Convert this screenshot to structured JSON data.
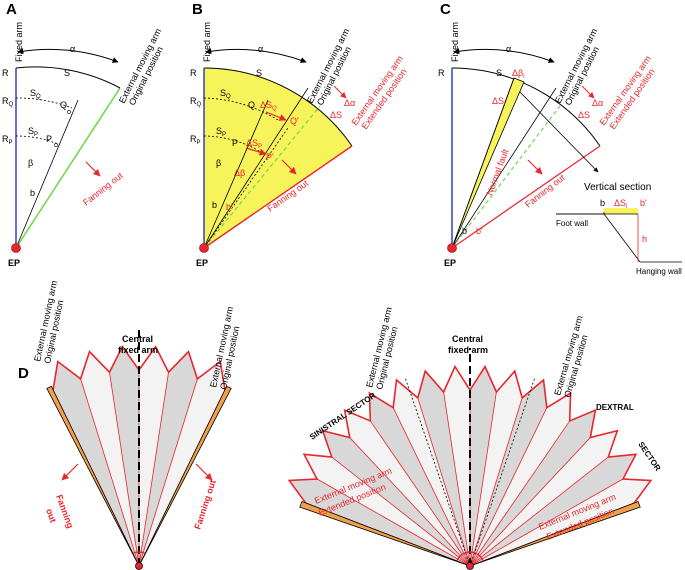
{
  "panels": {
    "A": {
      "letter": "A",
      "fixed_arm": "Fixed arm",
      "ext_arm_line1": "External moving arm",
      "ext_arm_line2": "Original position",
      "alpha": "α",
      "R": "R",
      "RQ": "R",
      "RQ_sub": "Q",
      "RP": "R",
      "RP_sub": "P",
      "S": "S",
      "SQ": "S",
      "SQ_sub": "Q",
      "SP": "S",
      "SP_sub": "P",
      "Q": "Q",
      "P": "P",
      "beta": "β",
      "b": "b",
      "fanning": "Fanning out",
      "EP": "EP"
    },
    "B": {
      "letter": "B",
      "fixed_arm": "Fixed arm",
      "ext_arm_line1": "External moving arm",
      "ext_arm_line2": "Original position",
      "ext_ext_line1": "External moving arm",
      "ext_ext_line2": "Extended position",
      "alpha": "α",
      "dalpha": "Δα",
      "dS": "ΔS",
      "R": "R",
      "RQ": "R",
      "RQ_sub": "Q",
      "RP": "R",
      "RP_sub": "P",
      "S": "S",
      "SQ": "S",
      "SQ_sub": "Q",
      "SP": "S",
      "SP_sub": "P",
      "dSQ": "ΔS",
      "dSQ_sub": "Q",
      "dSP": "ΔS",
      "dSP_sub": "P",
      "Q": "Q",
      "Qp": "Q'",
      "P": "P",
      "Pp": "P'",
      "beta": "β",
      "dbeta": "Δβ",
      "b": "b",
      "bp": "b'",
      "fanning": "Fanning out",
      "EP": "EP"
    },
    "C": {
      "letter": "C",
      "fixed_arm": "Fixed arm",
      "ext_arm_line1": "External moving arm",
      "ext_arm_line2": "Original position",
      "ext_ext_line1": "External moving arm",
      "ext_ext_line2": "Extended position",
      "alpha": "α",
      "dalpha": "Δα",
      "dS": "ΔS",
      "R": "R",
      "S": "S",
      "dbeta_i": "Δβ",
      "dbeta_sub": "i",
      "dS_i": "ΔS",
      "dS_sub": "i",
      "normal_fault": "Normal fault",
      "fanning": "Fanning out",
      "b": "b",
      "bp": "b'",
      "vertical_section": "Vertical section",
      "vs_b": "b",
      "vs_bp": "b'",
      "vs_dS": "ΔS",
      "vs_dS_sub": "i",
      "foot_wall": "Foot wall",
      "hanging_wall": "Hanging wall",
      "h": "h",
      "EP": "EP"
    },
    "D": {
      "letter": "D",
      "left": {
        "ext_arm_line1": "External moving arm",
        "ext_arm_line2": "Original position",
        "ext_arm_r_line1": "External moving arm",
        "ext_arm_r_line2": "Original position",
        "central_line1": "Central",
        "central_line2": "fixed arm",
        "fanning_left_1": "Fanning",
        "fanning_left_2": "out",
        "fanning_right": "Fanning out"
      },
      "right": {
        "ext_arm_line1": "External moving arm",
        "ext_arm_line2": "Original position",
        "ext_arm_r_line1": "External moving arm",
        "ext_arm_r_line2": "Original position",
        "central_line1": "Central",
        "central_line2": "fixed arm",
        "sinistral": "SINISTRAL   SECTOR",
        "dextral_1": "DEXTRAL",
        "dextral_2": "SECTOR",
        "ext_left_1": "External moving arm",
        "ext_left_2": "Extended position",
        "ext_right_1": "External moving arm",
        "ext_right_2": "Extended position"
      }
    }
  },
  "colors": {
    "red": "#e8262b",
    "yellow": "#f7f35a",
    "green": "#6fd94a",
    "blue": "#2432c8",
    "orange": "#f0a04b",
    "grey": "#d8d8d8"
  }
}
